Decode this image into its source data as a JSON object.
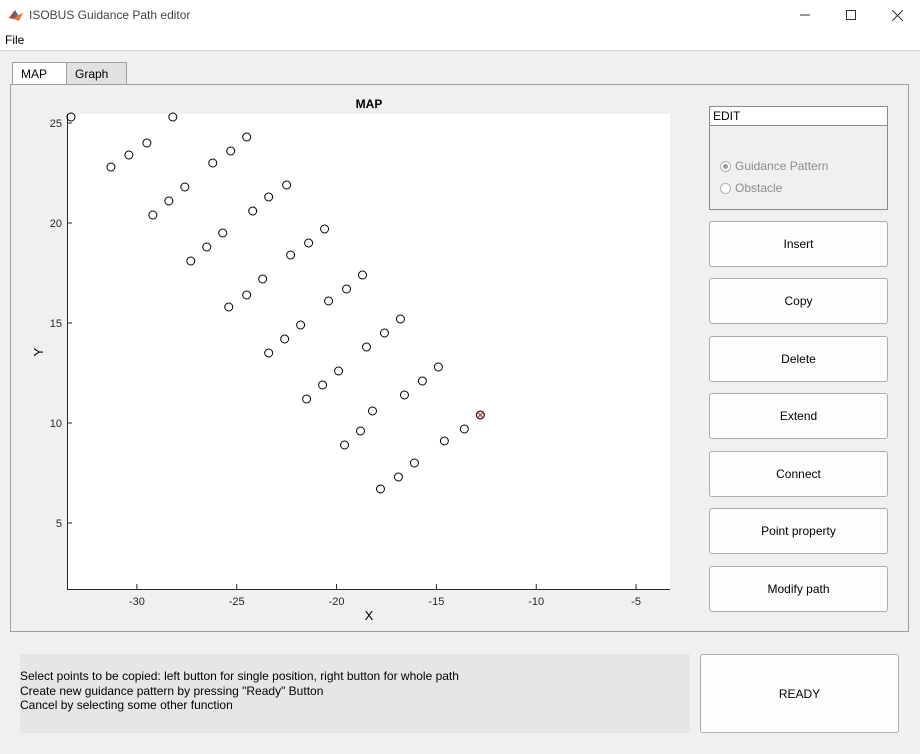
{
  "window": {
    "title": "ISOBUS Guidance Path editor"
  },
  "menu": {
    "items": [
      "File"
    ]
  },
  "tabs": [
    {
      "label": "MAP",
      "active": true
    },
    {
      "label": "Graph",
      "active": false
    }
  ],
  "chart_data": {
    "type": "scatter",
    "title": "MAP",
    "xlabel": "X",
    "ylabel": "Y",
    "xlim": [
      -33.5,
      -3.3
    ],
    "ylim": [
      1.7,
      25.45
    ],
    "xticks": [
      -30,
      -25,
      -20,
      -15,
      -10,
      -5
    ],
    "yticks": [
      5,
      10,
      15,
      20,
      25
    ],
    "xtick_labels": [
      "-30",
      "-25",
      "-20",
      "-15",
      "-10",
      "-5"
    ],
    "ytick_labels": [
      "5",
      "10",
      "15",
      "20",
      "25"
    ],
    "grid": false,
    "marker": "open-circle",
    "series": [
      {
        "points": [
          [
            -33.3,
            25.3
          ],
          [
            -31.3,
            22.8
          ],
          [
            -30.4,
            23.4
          ],
          [
            -29.5,
            24.0
          ],
          [
            -28.2,
            25.3
          ]
        ]
      },
      {
        "points": [
          [
            -29.2,
            20.4
          ],
          [
            -28.4,
            21.1
          ],
          [
            -27.6,
            21.8
          ],
          [
            -26.2,
            23.0
          ],
          [
            -25.3,
            23.6
          ],
          [
            -24.5,
            24.3
          ]
        ]
      },
      {
        "points": [
          [
            -27.3,
            18.1
          ],
          [
            -26.5,
            18.8
          ],
          [
            -25.7,
            19.5
          ],
          [
            -24.2,
            20.6
          ],
          [
            -23.4,
            21.3
          ],
          [
            -22.5,
            21.9
          ]
        ]
      },
      {
        "points": [
          [
            -25.4,
            15.8
          ],
          [
            -24.5,
            16.4
          ],
          [
            -23.7,
            17.2
          ],
          [
            -22.3,
            18.4
          ],
          [
            -21.4,
            19.0
          ],
          [
            -20.6,
            19.7
          ]
        ]
      },
      {
        "points": [
          [
            -23.4,
            13.5
          ],
          [
            -22.6,
            14.2
          ],
          [
            -21.8,
            14.9
          ],
          [
            -20.4,
            16.1
          ],
          [
            -19.5,
            16.7
          ],
          [
            -18.7,
            17.4
          ]
        ]
      },
      {
        "points": [
          [
            -21.5,
            11.2
          ],
          [
            -20.7,
            11.9
          ],
          [
            -19.9,
            12.6
          ],
          [
            -18.5,
            13.8
          ],
          [
            -17.6,
            14.5
          ],
          [
            -16.8,
            15.2
          ]
        ]
      },
      {
        "points": [
          [
            -19.6,
            8.9
          ],
          [
            -18.8,
            9.6
          ],
          [
            -18.2,
            10.6
          ],
          [
            -16.6,
            11.4
          ],
          [
            -15.7,
            12.1
          ],
          [
            -14.9,
            12.8
          ]
        ]
      },
      {
        "points": [
          [
            -17.8,
            6.7
          ],
          [
            -16.9,
            7.3
          ],
          [
            -16.1,
            8.0
          ],
          [
            -14.6,
            9.1
          ],
          [
            -13.6,
            9.7
          ],
          [
            -12.8,
            10.4
          ]
        ]
      }
    ],
    "highlighted_point": [
      -12.8,
      10.4
    ],
    "highlight_color": "#d32f2f"
  },
  "edit_panel": {
    "title": "EDIT",
    "options": [
      {
        "label": "Guidance Pattern",
        "selected": true
      },
      {
        "label": "Obstacle",
        "selected": false
      }
    ]
  },
  "buttons": {
    "insert": "Insert",
    "copy": "Copy",
    "delete": "Delete",
    "extend": "Extend",
    "connect": "Connect",
    "point_property": "Point property",
    "modify_path": "Modify path",
    "ready": "READY"
  },
  "status": {
    "lines": [
      "Select points to be copied: left button for single position, right button for whole path",
      "Create new guidance pattern by pressing \"Ready\" Button",
      "Cancel by selecting some other function"
    ]
  }
}
